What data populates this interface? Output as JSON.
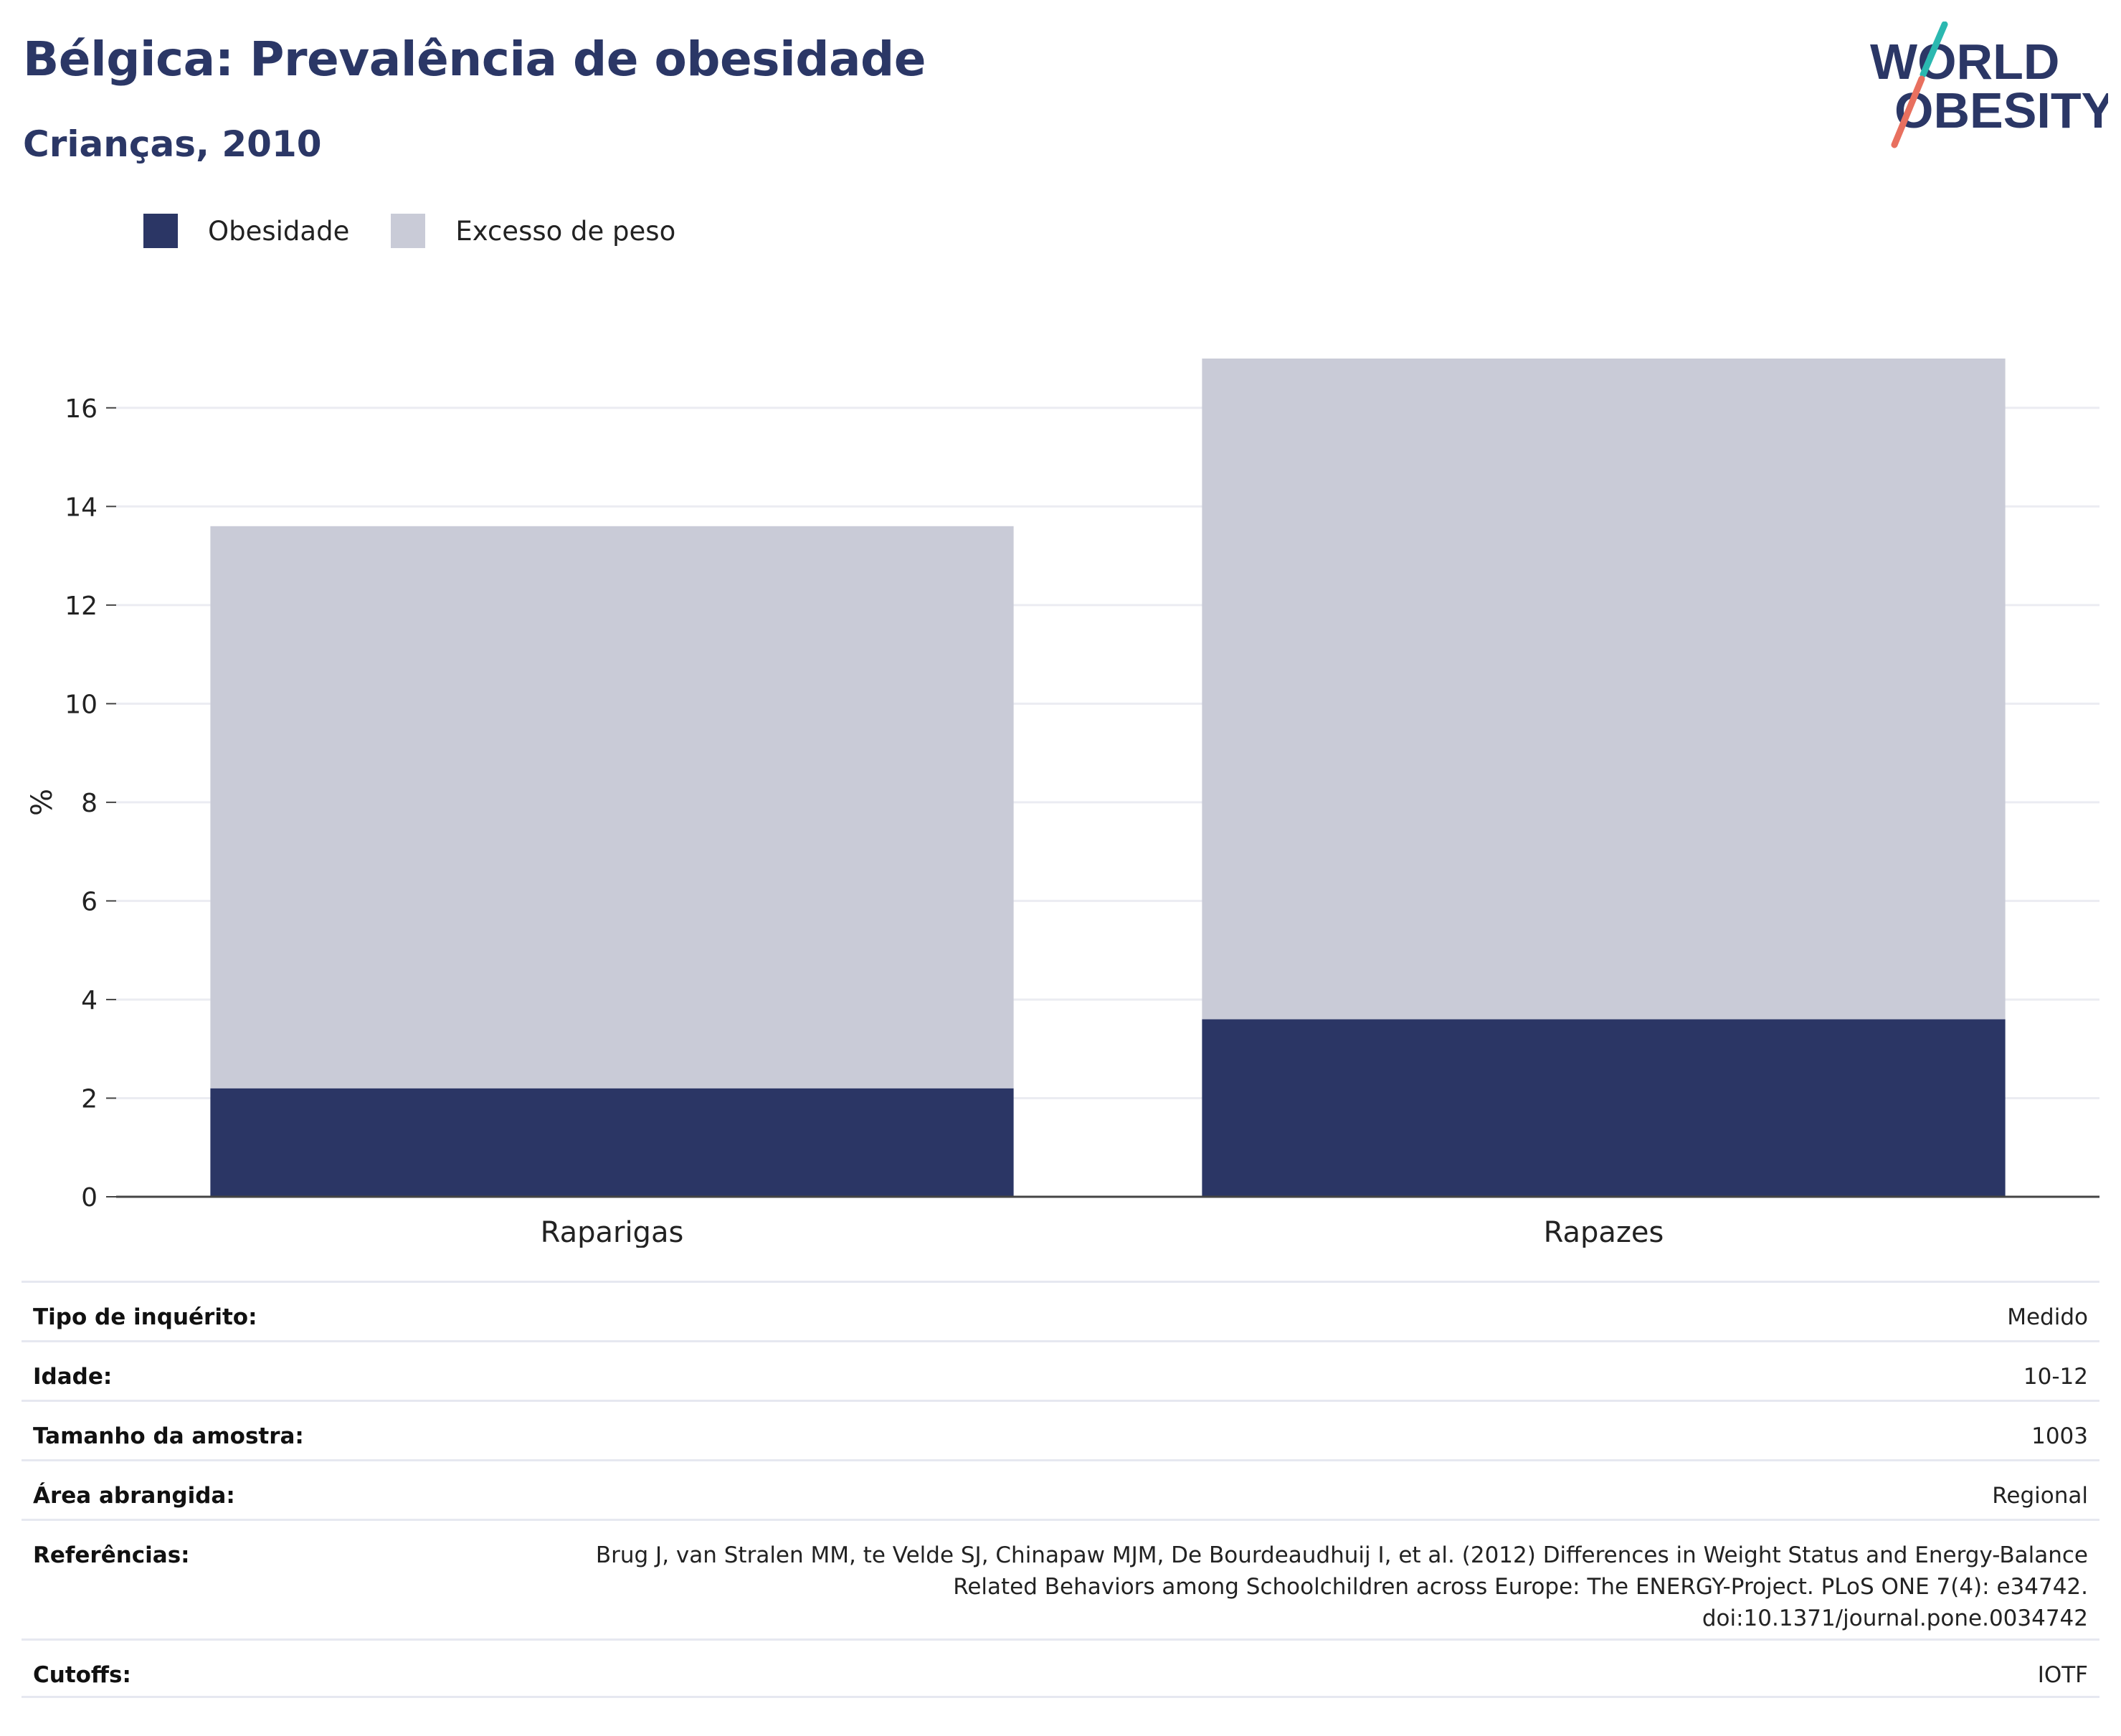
{
  "header": {
    "title": "Bélgica: Prevalência de obesidade",
    "subtitle": "Crianças, 2010"
  },
  "logo": {
    "line1": "WORLD",
    "line2": "OBESITY"
  },
  "colors": {
    "obesity": "#2b3665",
    "overweight": "#c9cbd7",
    "title": "#2b3766",
    "logo_teal": "#2bb8b0",
    "logo_coral": "#e8705f"
  },
  "legend": [
    {
      "label": "Obesidade",
      "color": "#2b3665"
    },
    {
      "label": "Excesso de peso",
      "color": "#c9cbd7"
    }
  ],
  "chart_data": {
    "type": "bar",
    "stacked": true,
    "categories": [
      "Raparigas",
      "Rapazes"
    ],
    "series": [
      {
        "name": "Obesidade",
        "values": [
          2.2,
          3.6
        ]
      },
      {
        "name": "Excesso de peso",
        "values": [
          11.4,
          13.4
        ]
      }
    ],
    "ylabel": "%",
    "ylim": [
      0,
      17
    ],
    "yticks": [
      0,
      2,
      4,
      6,
      8,
      10,
      12,
      14,
      16
    ],
    "grid": true,
    "legend_position": "top-left"
  },
  "meta": [
    {
      "key": "Tipo de inquérito:",
      "value": "Medido"
    },
    {
      "key": "Idade:",
      "value": "10-12"
    },
    {
      "key": "Tamanho da amostra:",
      "value": "1003"
    },
    {
      "key": "Área abrangida:",
      "value": "Regional"
    },
    {
      "key": "Referências:",
      "value_lines": [
        "Brug J, van Stralen MM, te Velde SJ, Chinapaw MJM, De Bourdeaudhuij I, et al. (2012) Differences in Weight Status and Energy-Balance",
        "Related Behaviors among Schoolchildren across Europe: The ENERGY-Project. PLoS ONE 7(4): e34742.",
        "doi:10.1371/journal.pone.0034742"
      ]
    },
    {
      "key": "Cutoffs:",
      "value": "IOTF"
    }
  ]
}
